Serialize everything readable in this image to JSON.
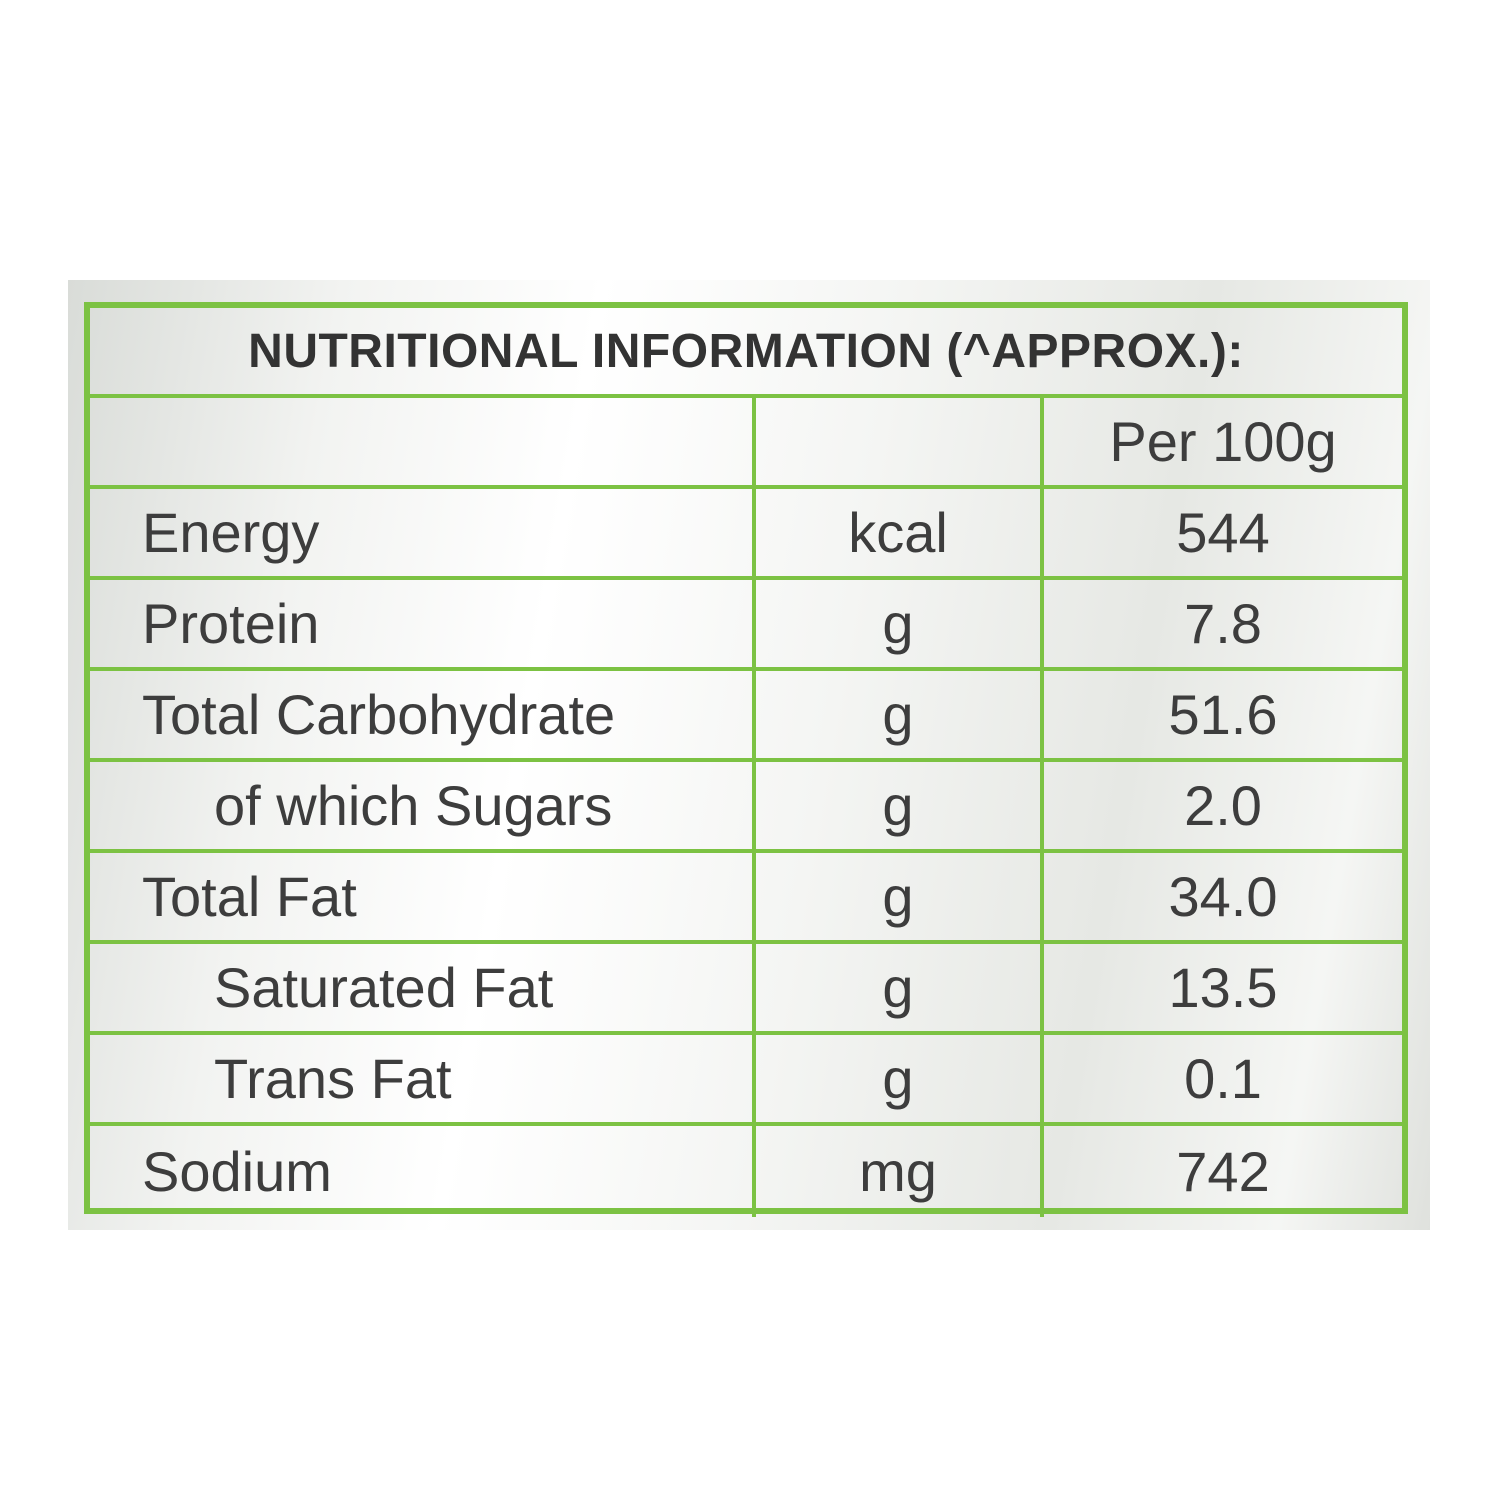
{
  "table": {
    "title": "NUTRITIONAL INFORMATION (^APPROX.):",
    "header": {
      "name": "",
      "unit": "",
      "value": "Per 100g"
    },
    "rows": [
      {
        "name": "Energy",
        "unit": "kcal",
        "value": "544",
        "indent": false
      },
      {
        "name": "Protein",
        "unit": "g",
        "value": "7.8",
        "indent": false
      },
      {
        "name": "Total Carbohydrate",
        "unit": "g",
        "value": "51.6",
        "indent": false
      },
      {
        "name": "of which Sugars",
        "unit": "g",
        "value": "2.0",
        "indent": true
      },
      {
        "name": "Total Fat",
        "unit": "g",
        "value": "34.0",
        "indent": false
      },
      {
        "name": "Saturated Fat",
        "unit": "g",
        "value": "13.5",
        "indent": true
      },
      {
        "name": "Trans Fat",
        "unit": "g",
        "value": "0.1",
        "indent": true
      },
      {
        "name": "Sodium",
        "unit": "mg",
        "value": "742",
        "indent": false
      }
    ]
  },
  "colors": {
    "border": "#7cc243",
    "text": "#3d3d3d",
    "title_text": "#333333"
  }
}
